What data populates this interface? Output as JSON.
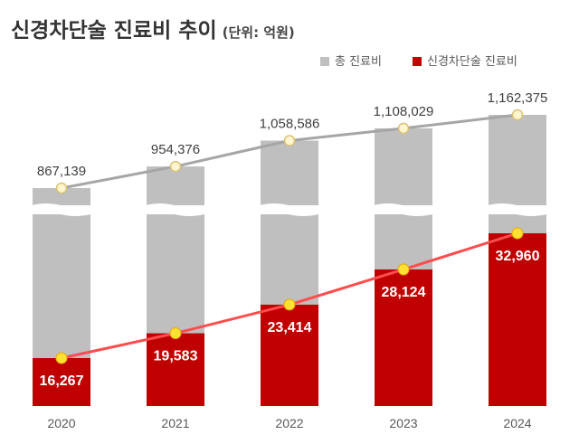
{
  "title": "신경차단술 진료비 추이",
  "unit": "(단위: 억원)",
  "chart_data": {
    "type": "bar",
    "title": "신경차단술 진료비 추이",
    "unit": "(단위: 억원)",
    "categories": [
      "2020",
      "2021",
      "2022",
      "2023",
      "2024"
    ],
    "series": [
      {
        "name": "총 진료비",
        "values": [
          867139,
          954376,
          1058586,
          1108029,
          1162375
        ],
        "labels": [
          "867,139",
          "954,376",
          "1,058,586",
          "1,108,029",
          "1,162,375"
        ],
        "color": "#bfbfbf",
        "line_color": "#a6a6a6"
      },
      {
        "name": "신경차단술 진료비",
        "values": [
          16267,
          19583,
          23414,
          28124,
          32960
        ],
        "labels": [
          "16,267",
          "19,583",
          "23,414",
          "28,124",
          "32,960"
        ],
        "color": "#c00000",
        "line_color": "#ff4d4d"
      }
    ],
    "marker_color": "#ffe033",
    "axis_break": true,
    "grid": false,
    "legend_position": "top-right"
  }
}
